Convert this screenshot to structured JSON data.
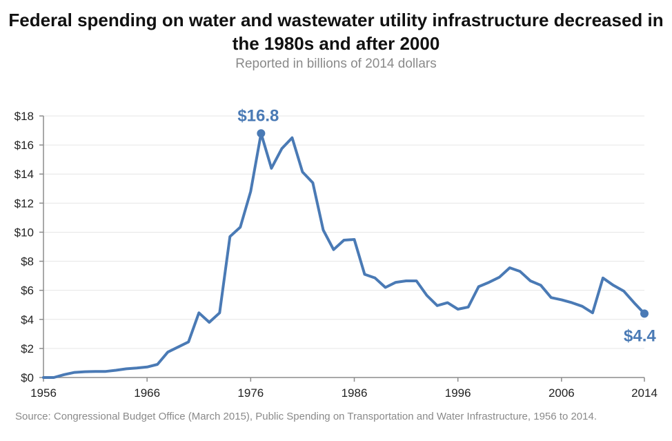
{
  "chart_data": {
    "type": "line",
    "title": "Federal spending on water and wastewater utility infrastructure decreased in the 1980s and after 2000",
    "subtitle": "Reported in billions of 2014 dollars",
    "xlabel": "",
    "ylabel": "",
    "xlim": [
      1956,
      2014
    ],
    "ylim": [
      0,
      18
    ],
    "grid": true,
    "legend": "none",
    "color": "#4a7ab5",
    "y_ticks": [
      0,
      2,
      4,
      6,
      8,
      10,
      12,
      14,
      16,
      18
    ],
    "y_tick_labels": [
      "$0",
      "$2",
      "$4",
      "$6",
      "$8",
      "$10",
      "$12",
      "$14",
      "$16",
      "$18"
    ],
    "x_ticks": [
      1956,
      1966,
      1976,
      1986,
      1996,
      2006,
      2014
    ],
    "x_tick_labels": [
      "1956",
      "1966",
      "1976",
      "1986",
      "1996",
      "2006",
      "2014"
    ],
    "series": [
      {
        "name": "Federal spending",
        "x": [
          1956,
          1957,
          1958,
          1959,
          1960,
          1961,
          1962,
          1963,
          1964,
          1965,
          1966,
          1967,
          1968,
          1969,
          1970,
          1971,
          1972,
          1973,
          1974,
          1975,
          1976,
          1977,
          1978,
          1979,
          1980,
          1981,
          1982,
          1983,
          1984,
          1985,
          1986,
          1987,
          1988,
          1989,
          1990,
          1991,
          1992,
          1993,
          1994,
          1995,
          1996,
          1997,
          1998,
          1999,
          2000,
          2001,
          2002,
          2003,
          2004,
          2005,
          2006,
          2007,
          2008,
          2009,
          2010,
          2011,
          2012,
          2013,
          2014
        ],
        "values": [
          0,
          0,
          0.2,
          0.35,
          0.4,
          0.42,
          0.42,
          0.5,
          0.6,
          0.65,
          0.72,
          0.9,
          1.75,
          2.1,
          2.45,
          4.45,
          3.8,
          4.45,
          9.7,
          10.35,
          12.8,
          16.8,
          14.4,
          15.75,
          16.5,
          14.15,
          13.4,
          10.15,
          8.8,
          9.45,
          9.5,
          7.1,
          6.85,
          6.2,
          6.55,
          6.65,
          6.65,
          5.65,
          4.95,
          5.15,
          4.7,
          4.85,
          6.25,
          6.55,
          6.9,
          7.55,
          7.3,
          6.65,
          6.35,
          5.5,
          5.35,
          5.15,
          4.9,
          4.45,
          6.85,
          6.35,
          5.95,
          5.15,
          4.4
        ]
      }
    ],
    "annotations": [
      {
        "x": 1977,
        "y": 16.8,
        "label": "$16.8",
        "marker": true
      },
      {
        "x": 2014,
        "y": 4.4,
        "label": "$4.4",
        "marker": true
      }
    ],
    "source": "Source: Congressional Budget Office (March 2015), Public Spending on Transportation and Water Infrastructure, 1956 to 2014."
  }
}
